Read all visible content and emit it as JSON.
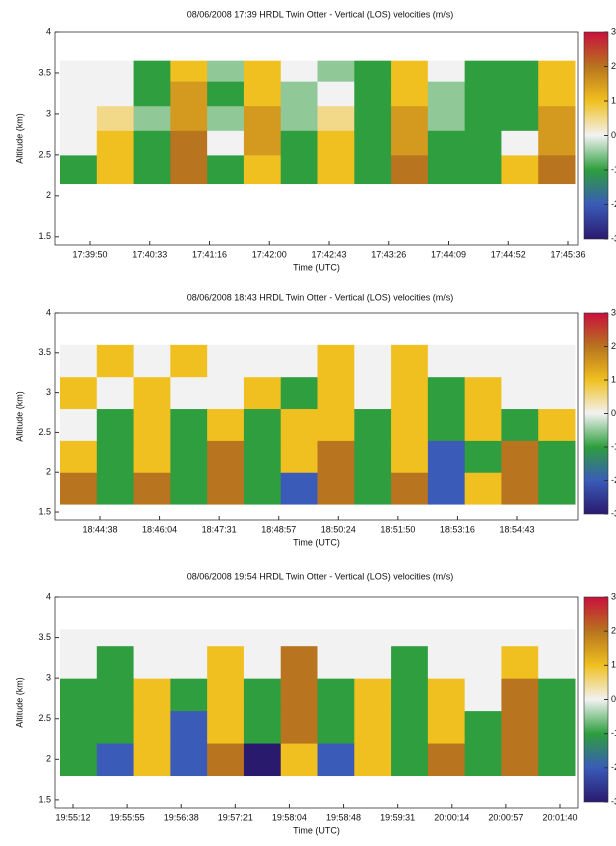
{
  "chart_data": [
    {
      "type": "heatmap",
      "title": "08/06/2008 17:39  HRDL Twin Otter - Vertical (LOS) velocities (m/s)",
      "xlabel": "Time (UTC)",
      "ylabel": "Altitude (km)",
      "xticks": [
        "17:39:50",
        "17:40:33",
        "17:41:16",
        "17:42:00",
        "17:42:43",
        "17:43:26",
        "17:44:09",
        "17:44:52",
        "17:45:36"
      ],
      "ylim": [
        1.4,
        4
      ],
      "yticks": [
        1.5,
        2,
        2.5,
        3,
        3.5,
        4
      ],
      "y_edges": [
        2.15,
        2.5,
        2.8,
        3.1,
        3.4,
        3.65
      ],
      "values": [
        [
          -1,
          1,
          -1,
          2,
          -1,
          1,
          -1,
          1,
          -1,
          2,
          -1,
          -1,
          1,
          2
        ],
        [
          0,
          1,
          -1,
          2,
          0,
          1.5,
          -1,
          1,
          -1,
          1.5,
          -1,
          -1,
          0,
          1.5
        ],
        [
          0,
          0.5,
          -0.5,
          1.5,
          -0.5,
          1.5,
          -0.5,
          0.5,
          -1,
          1.5,
          -0.5,
          -1,
          -1,
          1.5
        ],
        [
          0,
          0,
          -1,
          1.5,
          -1,
          1,
          -0.5,
          0,
          -1,
          1,
          -0.5,
          -1,
          -1,
          1
        ],
        [
          0,
          0,
          -1,
          1,
          -0.5,
          1,
          0,
          -0.5,
          -1,
          1,
          0,
          -1,
          -1,
          1
        ]
      ],
      "zlim": [
        -3,
        3
      ],
      "zticks": [
        3,
        2,
        1,
        0,
        -1,
        -2,
        -3
      ],
      "colors": [
        "#2a1a6e",
        "#3a5bb8",
        "#2e9e3e",
        "#f2f2f2",
        "#f0c020",
        "#b8741e",
        "#c8103c"
      ]
    },
    {
      "type": "heatmap",
      "title": "08/06/2008 18:43  HRDL Twin Otter - Vertical (LOS) velocities (m/s)",
      "xlabel": "Time (UTC)",
      "ylabel": "Altitude (km)",
      "xticks": [
        "18:44:38",
        "18:46:04",
        "18:47:31",
        "18:48:57",
        "18:50:24",
        "18:51:50",
        "18:53:16",
        "18:54:43"
      ],
      "ylim": [
        1.4,
        4
      ],
      "yticks": [
        1.5,
        2,
        2.5,
        3,
        3.5,
        4
      ],
      "y_edges": [
        1.6,
        2.0,
        2.4,
        2.8,
        3.2,
        3.6
      ],
      "values": [
        [
          2,
          -1,
          2,
          -1,
          2,
          -1,
          -2,
          2,
          -1,
          2,
          -2,
          1,
          2,
          -1
        ],
        [
          1,
          -1,
          1,
          -1,
          2,
          -1,
          1,
          2,
          -1,
          1,
          -2,
          -1,
          2,
          -1
        ],
        [
          0,
          -1,
          1,
          -1,
          1,
          -1,
          1,
          1,
          -1,
          1,
          -1,
          1,
          -1,
          1
        ],
        [
          1,
          0,
          1,
          0,
          0,
          1,
          -1,
          1,
          0,
          1,
          -1,
          1,
          0,
          0
        ],
        [
          0,
          1,
          0,
          1,
          0,
          0,
          0,
          1,
          0,
          1,
          0,
          0,
          0,
          0
        ]
      ],
      "zlim": [
        -3,
        3
      ],
      "zticks": [
        3,
        2,
        1,
        0,
        -1,
        -2,
        -3
      ],
      "colors": [
        "#2a1a6e",
        "#3a5bb8",
        "#2e9e3e",
        "#f2f2f2",
        "#f0c020",
        "#b8741e",
        "#c8103c"
      ]
    },
    {
      "type": "heatmap",
      "title": "08/06/2008 19:54  HRDL Twin Otter - Vertical (LOS) velocities (m/s)",
      "xlabel": "Time (UTC)",
      "ylabel": "Altitude (km)",
      "xticks": [
        "19:55:12",
        "19:55:55",
        "19:56:38",
        "19:57:21",
        "19:58:04",
        "19:58:48",
        "19:59:31",
        "20:00:14",
        "20:00:57",
        "20:01:40"
      ],
      "ylim": [
        1.4,
        4
      ],
      "yticks": [
        1.5,
        2,
        2.5,
        3,
        3.5,
        4
      ],
      "y_edges": [
        1.8,
        2.2,
        2.6,
        3.0,
        3.4,
        3.6
      ],
      "values": [
        [
          -1,
          -2,
          1,
          -2,
          2,
          -3,
          1,
          -2,
          1,
          -1,
          2,
          -1,
          2,
          -1
        ],
        [
          -1,
          -1,
          1,
          -2,
          1,
          -1,
          2,
          -1,
          1,
          -1,
          1,
          -1,
          2,
          -1
        ],
        [
          -1,
          -1,
          1,
          -1,
          1,
          -1,
          2,
          -1,
          1,
          -1,
          1,
          0,
          2,
          -1
        ],
        [
          0,
          -1,
          0,
          0,
          1,
          0,
          2,
          0,
          0,
          -1,
          0,
          0,
          1,
          0
        ],
        [
          0,
          0,
          0,
          0,
          0,
          0,
          0,
          0,
          0,
          0,
          0,
          0,
          0,
          0
        ]
      ],
      "zlim": [
        -3,
        3
      ],
      "zticks": [
        3,
        2,
        1,
        0,
        -1,
        -2,
        -3
      ],
      "colors": [
        "#2a1a6e",
        "#3a5bb8",
        "#2e9e3e",
        "#f2f2f2",
        "#f0c020",
        "#b8741e",
        "#c8103c"
      ]
    }
  ]
}
